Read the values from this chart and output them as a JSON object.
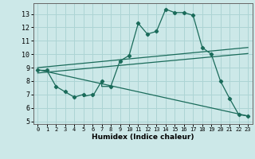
{
  "title": "",
  "xlabel": "Humidex (Indice chaleur)",
  "bg_color": "#cce8e8",
  "line_color": "#1a6b5a",
  "grid_color": "#add4d4",
  "xlim": [
    -0.5,
    23.5
  ],
  "ylim": [
    4.8,
    13.8
  ],
  "yticks": [
    5,
    6,
    7,
    8,
    9,
    10,
    11,
    12,
    13
  ],
  "xticks": [
    0,
    1,
    2,
    3,
    4,
    5,
    6,
    7,
    8,
    9,
    10,
    11,
    12,
    13,
    14,
    15,
    16,
    17,
    18,
    19,
    20,
    21,
    22,
    23
  ],
  "main_x": [
    0,
    1,
    2,
    3,
    4,
    5,
    5,
    6,
    6,
    7,
    7,
    8,
    9,
    10,
    11,
    12,
    13,
    14,
    15,
    16,
    17,
    18,
    19,
    20,
    21,
    22,
    23
  ],
  "main_y": [
    8.8,
    8.8,
    7.6,
    7.2,
    6.8,
    7.0,
    6.85,
    7.0,
    6.85,
    8.0,
    7.6,
    7.6,
    9.5,
    9.9,
    12.3,
    11.5,
    11.7,
    13.35,
    13.1,
    13.1,
    12.9,
    10.5,
    10.0,
    8.0,
    6.7,
    5.5,
    5.4
  ],
  "main_markers_x": [
    0,
    1,
    2,
    3,
    4,
    5,
    6,
    7,
    8,
    9,
    10,
    11,
    12,
    13,
    14,
    15,
    16,
    17,
    18,
    19,
    20,
    21,
    22,
    23
  ],
  "main_markers_y": [
    8.8,
    8.8,
    7.6,
    7.2,
    6.8,
    7.0,
    7.0,
    8.0,
    7.6,
    9.5,
    9.9,
    12.3,
    11.5,
    11.7,
    13.35,
    13.1,
    13.1,
    12.9,
    10.5,
    10.0,
    8.0,
    6.7,
    5.5,
    5.4
  ],
  "trend1_x": [
    0,
    23
  ],
  "trend1_y": [
    9.0,
    10.5
  ],
  "trend2_x": [
    0,
    23
  ],
  "trend2_y": [
    8.6,
    10.05
  ],
  "decline_x": [
    0,
    23
  ],
  "decline_y": [
    8.85,
    5.4
  ]
}
